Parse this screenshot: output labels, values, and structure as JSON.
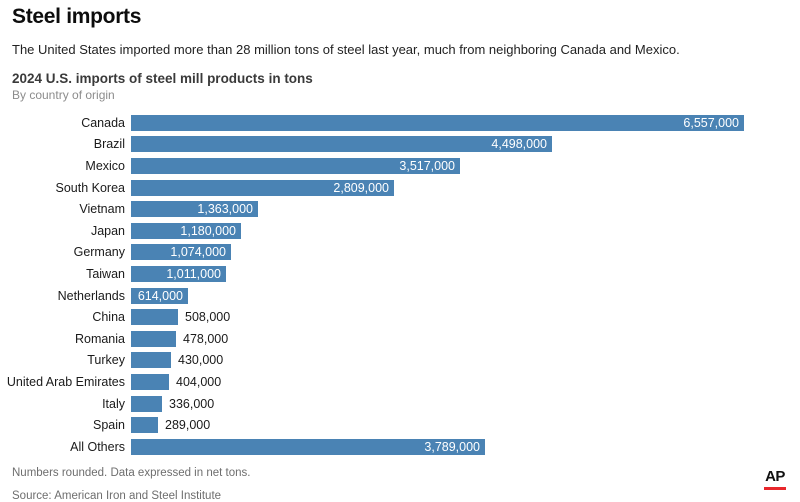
{
  "header": {
    "title": "Steel imports",
    "intro": "The United States imported more than 28 million tons of steel last year, much from neighboring Canada and Mexico.",
    "chart_title": "2024 U.S. imports of steel mill products in tons",
    "chart_subtitle": "By country of origin"
  },
  "chart_data": {
    "type": "bar",
    "orientation": "horizontal",
    "title": "2024 U.S. imports of steel mill products in tons",
    "subtitle": "By country of origin",
    "xlabel": "",
    "ylabel": "",
    "grid": false,
    "xlim": [
      0,
      6557000
    ],
    "bar_color": "#4a83b4",
    "inside_label_color": "#ffffff",
    "outside_label_color": "#1a1a1a",
    "categories": [
      "Canada",
      "Brazil",
      "Mexico",
      "South Korea",
      "Vietnam",
      "Japan",
      "Germany",
      "Taiwan",
      "Netherlands",
      "China",
      "Romania",
      "Turkey",
      "United Arab Emirates",
      "Italy",
      "Spain",
      "All Others"
    ],
    "values": [
      6557000,
      4498000,
      3517000,
      2809000,
      1363000,
      1180000,
      1074000,
      1011000,
      614000,
      508000,
      478000,
      430000,
      404000,
      336000,
      289000,
      3789000
    ],
    "value_labels": [
      "6,557,000",
      "4,498,000",
      "3,517,000",
      "2,809,000",
      "1,363,000",
      "1,180,000",
      "1,074,000",
      "1,011,000",
      "614,000",
      "508,000",
      "478,000",
      "430,000",
      "404,000",
      "336,000",
      "289,000",
      "3,789,000"
    ]
  },
  "footer": {
    "note1": "Numbers rounded. Data expressed in net tons.",
    "note2": "Source: American Iron and Steel Institute",
    "logo_text": "AP",
    "logo_underline_color": "#e8262b"
  }
}
